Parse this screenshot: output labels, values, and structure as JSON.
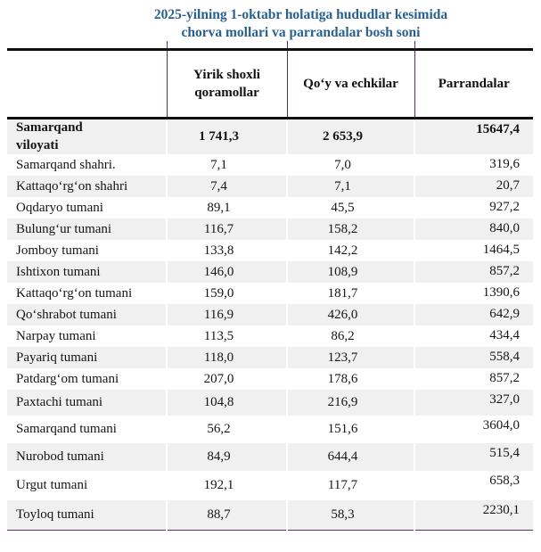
{
  "title": {
    "line1": "2025-yilning 1-oktabr holatiga hududlar kesimida",
    "line2": "chorva mollari va parrandalar bosh soni"
  },
  "colors": {
    "title_blue": "#29608f",
    "thick_rule": "#101010",
    "thin_rule_purple": "#5b2f63",
    "row_stripe": "#f0f0f1"
  },
  "table": {
    "columns": [
      "Yirik shoxli qoramollar",
      "Qo‘y va echkilar",
      "Parrandalar"
    ],
    "rows": [
      {
        "name": "Samarqand\nviloyati",
        "cattle": "1 741,3",
        "sheep_goats": "2 653,9",
        "poultry": "15647,4"
      },
      {
        "name": "Samarqand shahri.",
        "cattle": "7,1",
        "sheep_goats": "7,0",
        "poultry": "319,6"
      },
      {
        "name": "Kattaqo‘rg‘on shahri",
        "cattle": "7,4",
        "sheep_goats": "7,1",
        "poultry": "20,7"
      },
      {
        "name": "Oqdaryo tumani",
        "cattle": "89,1",
        "sheep_goats": "45,5",
        "poultry": "927,2"
      },
      {
        "name": "Bulung‘ur tumani",
        "cattle": "116,7",
        "sheep_goats": "158,2",
        "poultry": "840,0"
      },
      {
        "name": "Jomboy tumani",
        "cattle": "133,8",
        "sheep_goats": "142,2",
        "poultry": "1464,5"
      },
      {
        "name": "Ishtixon tumani",
        "cattle": "146,0",
        "sheep_goats": "108,9",
        "poultry": "857,2"
      },
      {
        "name": "Kattaqo‘rg‘on tumani",
        "cattle": "159,0",
        "sheep_goats": "181,7",
        "poultry": "1390,6"
      },
      {
        "name": "Qo‘shrabot tumani",
        "cattle": "116,9",
        "sheep_goats": "426,0",
        "poultry": "642,9"
      },
      {
        "name": "Narpay tumani",
        "cattle": "113,5",
        "sheep_goats": "86,2",
        "poultry": "434,4"
      },
      {
        "name": "Payariq tumani",
        "cattle": "118,0",
        "sheep_goats": "123,7",
        "poultry": "558,4"
      },
      {
        "name": "Patdarg‘om tumani",
        "cattle": "207,0",
        "sheep_goats": "178,6",
        "poultry": "857,2"
      },
      {
        "name": "Paxtachi tumani",
        "cattle": "104,8",
        "sheep_goats": "216,9",
        "poultry": "327,0"
      },
      {
        "name": "Samarqand tumani",
        "cattle": "56,2",
        "sheep_goats": "151,6",
        "poultry": "3604,0"
      },
      {
        "name": "Nurobod tumani",
        "cattle": "84,9",
        "sheep_goats": "644,4",
        "poultry": "515,4"
      },
      {
        "name": "Urgut tumani",
        "cattle": "192,1",
        "sheep_goats": "117,7",
        "poultry": "658,3"
      },
      {
        "name": "Toyloq tumani",
        "cattle": "88,7",
        "sheep_goats": "58,3",
        "poultry": "2230,1"
      }
    ]
  }
}
